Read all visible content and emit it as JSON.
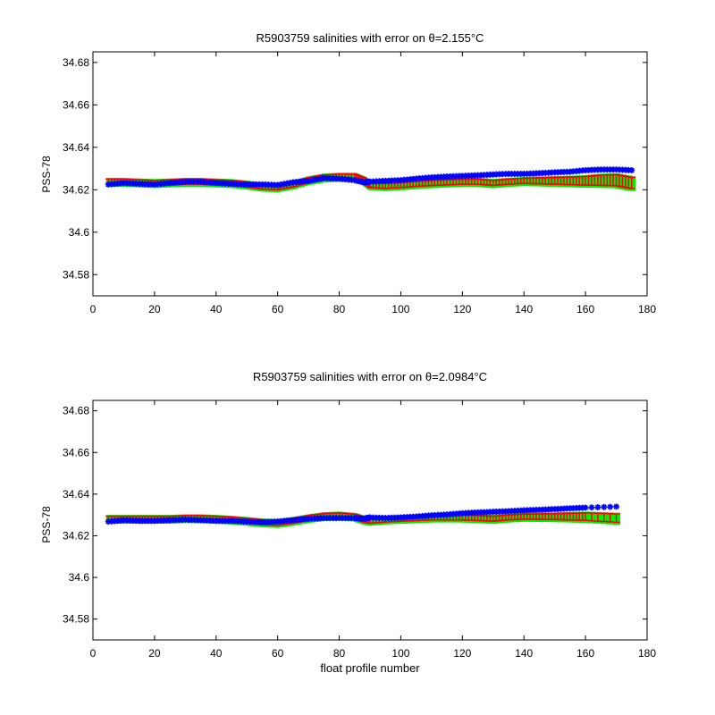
{
  "chart_data": [
    {
      "type": "scatter",
      "title": "R5903759 salinities with error on θ=2.155°C",
      "xlabel": "",
      "ylabel": "PSS-78",
      "xlim": [
        0,
        180
      ],
      "ylim": [
        34.57,
        34.685
      ],
      "x_ticks": [
        0,
        20,
        40,
        60,
        80,
        100,
        120,
        140,
        160,
        180
      ],
      "y_ticks": [
        34.58,
        34.6,
        34.62,
        34.64,
        34.66,
        34.68
      ],
      "grid": false,
      "colors": {
        "band": "#00ee00",
        "errorbar": "#ff0000",
        "marker": "#0000ff"
      },
      "series": [
        {
          "x": [
            5,
            10,
            15,
            20,
            25,
            30,
            35,
            40,
            45,
            50,
            55,
            60,
            65,
            70,
            75,
            80,
            85,
            88,
            90,
            95,
            100,
            105,
            110,
            115,
            120,
            125,
            130,
            135,
            140,
            145,
            150,
            155,
            160,
            165,
            170,
            175
          ],
          "y": [
            34.6225,
            34.6232,
            34.6228,
            34.6225,
            34.6232,
            34.6238,
            34.6238,
            34.6232,
            34.6228,
            34.6225,
            34.6225,
            34.6222,
            34.6235,
            34.6242,
            34.6255,
            34.6252,
            34.6245,
            34.6235,
            34.6238,
            34.6242,
            34.6245,
            34.6252,
            34.6258,
            34.6262,
            34.6265,
            34.6268,
            34.6272,
            34.6275,
            34.6275,
            34.6278,
            34.6282,
            34.6285,
            34.6292,
            34.6295,
            34.6295,
            34.6292
          ],
          "reference": [
            34.6238,
            34.6238,
            34.6235,
            34.6232,
            34.6235,
            34.6238,
            34.6238,
            34.6235,
            34.6232,
            34.6225,
            34.6215,
            34.6212,
            34.6225,
            34.6245,
            34.6258,
            34.6262,
            34.6262,
            34.6245,
            34.6222,
            34.6218,
            34.6222,
            34.6228,
            34.6232,
            34.6235,
            34.6238,
            34.6238,
            34.6232,
            34.6238,
            34.6242,
            34.6242,
            34.6242,
            34.6242,
            34.6242,
            34.6245,
            34.6245,
            34.6232
          ],
          "error": [
            0.0012,
            0.0012,
            0.0012,
            0.0012,
            0.0012,
            0.0012,
            0.0012,
            0.0012,
            0.0012,
            0.0012,
            0.0012,
            0.0012,
            0.0012,
            0.0012,
            0.0012,
            0.0012,
            0.0012,
            0.0012,
            0.0012,
            0.0012,
            0.0012,
            0.0012,
            0.0012,
            0.0012,
            0.0012,
            0.0012,
            0.0012,
            0.0012,
            0.0012,
            0.0014,
            0.0016,
            0.0018,
            0.002,
            0.0024,
            0.0026,
            0.0026
          ]
        }
      ]
    },
    {
      "type": "scatter",
      "title": "R5903759 salinities with error on θ=2.0984°C",
      "xlabel": "float profile number",
      "ylabel": "PSS-78",
      "xlim": [
        0,
        180
      ],
      "ylim": [
        34.57,
        34.685
      ],
      "x_ticks": [
        0,
        20,
        40,
        60,
        80,
        100,
        120,
        140,
        160,
        180
      ],
      "y_ticks": [
        34.58,
        34.6,
        34.62,
        34.64,
        34.66,
        34.68
      ],
      "grid": false,
      "colors": {
        "band": "#00ee00",
        "errorbar": "#ff0000",
        "marker": "#0000ff"
      },
      "series": [
        {
          "x": [
            5,
            10,
            15,
            20,
            25,
            30,
            35,
            40,
            45,
            50,
            55,
            60,
            65,
            70,
            75,
            80,
            85,
            88,
            90,
            95,
            100,
            105,
            110,
            115,
            120,
            125,
            130,
            135,
            140,
            145,
            150,
            155,
            160,
            170
          ],
          "y": [
            34.6268,
            34.6275,
            34.6272,
            34.6272,
            34.6275,
            34.6278,
            34.6275,
            34.6272,
            34.6272,
            34.6268,
            34.6265,
            34.6268,
            34.6275,
            34.6282,
            34.6285,
            34.6285,
            34.6285,
            34.6282,
            34.6288,
            34.6285,
            34.6288,
            34.6292,
            34.6298,
            34.6302,
            34.6308,
            34.6312,
            34.6315,
            34.6318,
            34.6322,
            34.6325,
            34.6328,
            34.6332,
            34.6335,
            34.634
          ],
          "reference": [
            34.6282,
            34.6282,
            34.6282,
            34.6282,
            34.6282,
            34.6285,
            34.6285,
            34.6282,
            34.6278,
            34.6272,
            34.6265,
            34.6262,
            34.6272,
            34.6285,
            34.6295,
            34.6298,
            34.6292,
            34.6278,
            34.6272,
            34.6278,
            34.6282,
            34.6285,
            34.6288,
            34.6288,
            34.6288,
            34.6285,
            34.6282,
            34.6288,
            34.6292,
            34.6292,
            34.6292,
            34.6292,
            34.6292,
            34.6285
          ],
          "error": [
            0.0012,
            0.0012,
            0.0012,
            0.0012,
            0.0012,
            0.0012,
            0.0012,
            0.0012,
            0.0012,
            0.0012,
            0.0012,
            0.0012,
            0.0012,
            0.0012,
            0.0012,
            0.0012,
            0.0012,
            0.0012,
            0.0012,
            0.0012,
            0.0012,
            0.0012,
            0.0012,
            0.0012,
            0.0012,
            0.0012,
            0.0012,
            0.0012,
            0.0012,
            0.0013,
            0.0014,
            0.0016,
            0.0018,
            0.002
          ]
        }
      ]
    }
  ]
}
